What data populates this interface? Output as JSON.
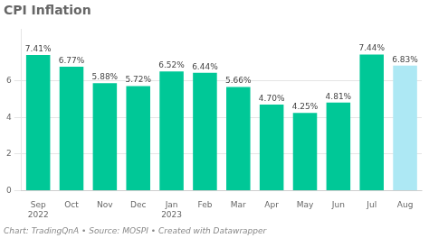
{
  "chart_data": {
    "type": "bar",
    "title": "CPI Inflation",
    "categories": [
      "Sep\n2022",
      "Oct",
      "Nov",
      "Dec",
      "Jan\n2023",
      "Feb",
      "Mar",
      "Apr",
      "May",
      "Jun",
      "Jul",
      "Aug"
    ],
    "values": [
      7.41,
      6.77,
      5.88,
      5.72,
      6.52,
      6.44,
      5.66,
      4.7,
      4.25,
      4.81,
      7.44,
      6.83
    ],
    "value_labels": [
      "7.41%",
      "6.77%",
      "5.88%",
      "5.72%",
      "6.52%",
      "6.44%",
      "5.66%",
      "4.70%",
      "4.25%",
      "4.81%",
      "7.44%",
      "6.83%"
    ],
    "data_labels": true,
    "colors": [
      "#00C897",
      "#00C897",
      "#00C897",
      "#00C897",
      "#00C897",
      "#00C897",
      "#00C897",
      "#00C897",
      "#00C897",
      "#00C897",
      "#00C897",
      "#ADE8F4"
    ],
    "ylim": [
      0,
      8.8
    ],
    "yticks": [
      0,
      2,
      4,
      6
    ],
    "grid": true,
    "annotations": [
      "Chart: TradingQnA • Source: MOSPI • Created with Datawrapper"
    ]
  }
}
